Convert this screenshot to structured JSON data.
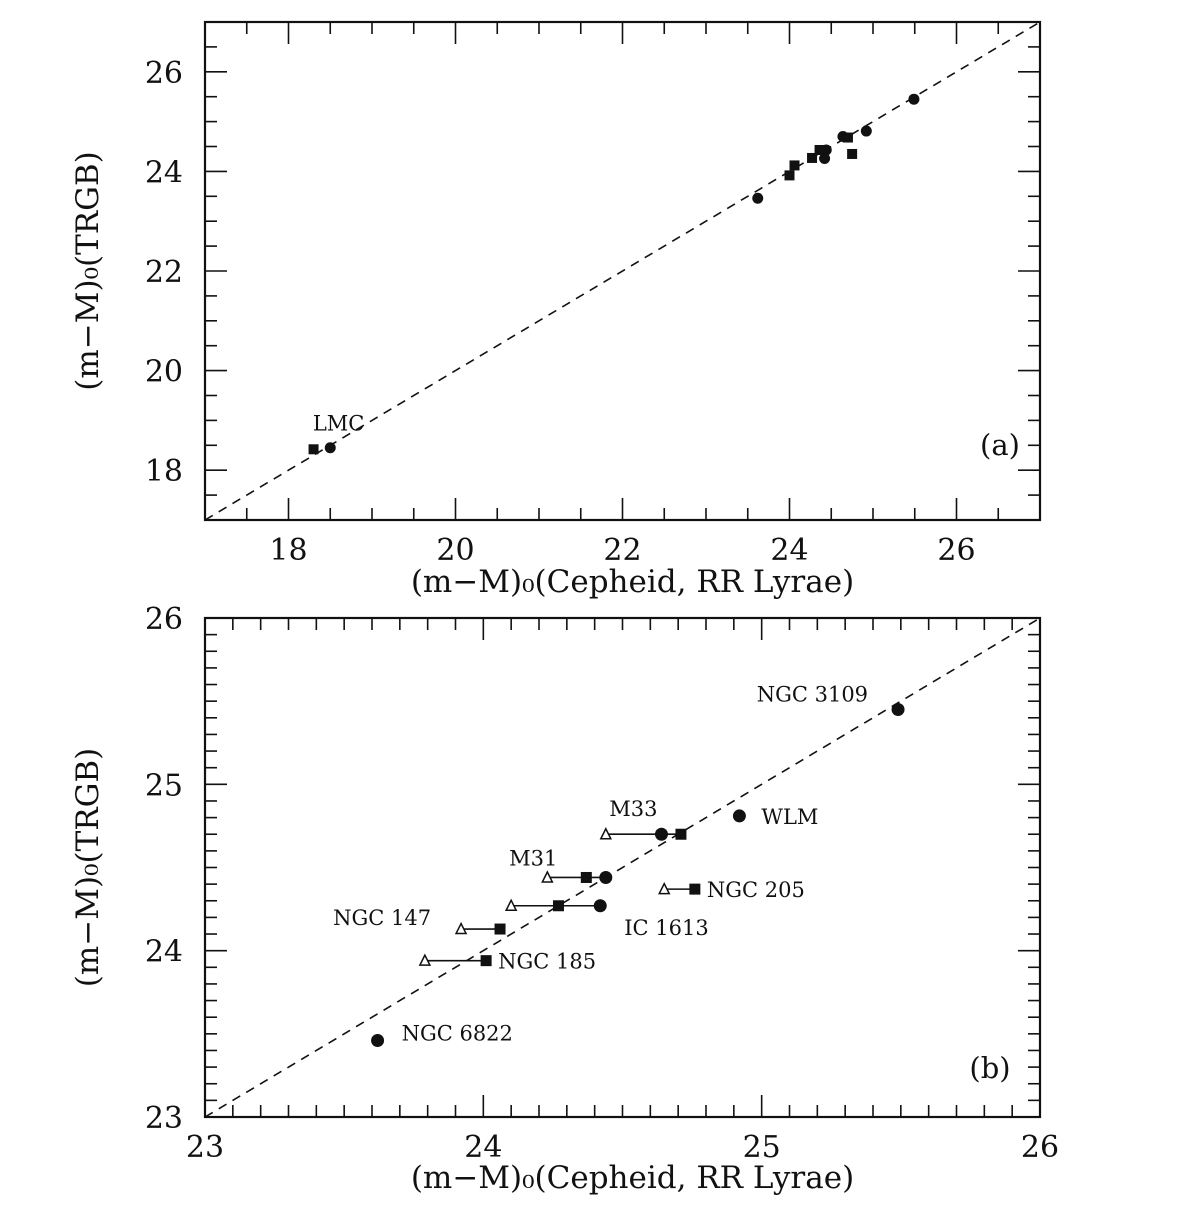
{
  "chart_data": [
    {
      "id": "a",
      "type": "scatter",
      "panel_label": "(a)",
      "xlabel": "(m−M)₀(Cepheid, RR Lyrae)",
      "ylabel": "(m−M)₀(TRGB)",
      "xlim": [
        17,
        27
      ],
      "ylim": [
        17,
        27
      ],
      "x_ticks": [
        18,
        20,
        22,
        24,
        26
      ],
      "y_ticks": [
        18,
        20,
        22,
        24,
        26
      ],
      "grid": false,
      "reference_line": "y = x (dashed)",
      "annotations": [
        {
          "text": "LMC",
          "x": 18.6,
          "y": 18.8
        }
      ],
      "series": [
        {
          "marker": "square",
          "points": [
            {
              "x": 18.3,
              "y": 18.42
            },
            {
              "x": 24.0,
              "y": 23.92
            },
            {
              "x": 24.06,
              "y": 24.12
            },
            {
              "x": 24.27,
              "y": 24.27
            },
            {
              "x": 24.36,
              "y": 24.43
            },
            {
              "x": 24.7,
              "y": 24.68
            },
            {
              "x": 24.75,
              "y": 24.35
            }
          ]
        },
        {
          "marker": "circle",
          "points": [
            {
              "x": 18.5,
              "y": 18.45
            },
            {
              "x": 23.62,
              "y": 23.46
            },
            {
              "x": 24.42,
              "y": 24.26
            },
            {
              "x": 24.44,
              "y": 24.43
            },
            {
              "x": 24.64,
              "y": 24.7
            },
            {
              "x": 24.92,
              "y": 24.81
            },
            {
              "x": 25.49,
              "y": 25.45
            }
          ]
        }
      ]
    },
    {
      "id": "b",
      "type": "scatter",
      "panel_label": "(b)",
      "xlabel": "(m−M)₀(Cepheid, RR Lyrae)",
      "ylabel": "(m−M)₀(TRGB)",
      "xlim": [
        23,
        26
      ],
      "ylim": [
        23,
        26
      ],
      "x_ticks": [
        23,
        24,
        25,
        26
      ],
      "y_ticks": [
        23,
        24,
        25,
        26
      ],
      "grid": false,
      "reference_line": "y = x (dashed)",
      "galaxies": [
        {
          "label": "NGC 3109",
          "label_side": "left",
          "y": 25.45,
          "circle": 25.49,
          "square": null,
          "triangle": null
        },
        {
          "label": "WLM",
          "label_side": "right",
          "y": 24.81,
          "circle": 24.92,
          "square": null,
          "triangle": null
        },
        {
          "label": "M33",
          "label_side": "above",
          "y": 24.7,
          "circle": 24.64,
          "square": 24.71,
          "triangle": 24.44
        },
        {
          "label": "M31",
          "label_side": "above-left",
          "y": 24.44,
          "circle": 24.44,
          "square": 24.37,
          "triangle": 24.23
        },
        {
          "label": "NGC 205",
          "label_side": "right",
          "y": 24.37,
          "circle": null,
          "square": 24.76,
          "triangle": 24.65
        },
        {
          "label": "IC 1613",
          "label_side": "below-right",
          "y": 24.27,
          "circle": 24.42,
          "square": 24.27,
          "triangle": 24.1
        },
        {
          "label": "NGC 147",
          "label_side": "left",
          "y": 24.13,
          "circle": null,
          "square": 24.06,
          "triangle": 23.92
        },
        {
          "label": "NGC 185",
          "label_side": "right",
          "y": 23.94,
          "circle": null,
          "square": 24.01,
          "triangle": 23.79
        },
        {
          "label": "NGC 6822",
          "label_side": "right",
          "y": 23.46,
          "circle": 23.62,
          "square": null,
          "triangle": null
        }
      ]
    }
  ]
}
